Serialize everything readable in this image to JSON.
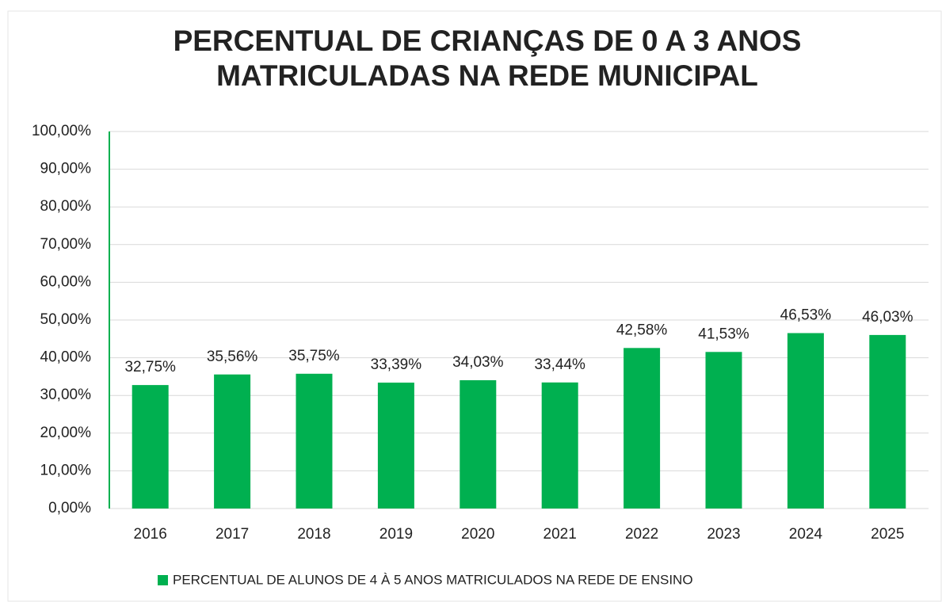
{
  "chart_data": {
    "type": "bar",
    "title": "PERCENTUAL DE CRIANÇAS DE 0 A 3 ANOS MATRICULADAS NA REDE MUNICIPAL",
    "categories": [
      "2016",
      "2017",
      "2018",
      "2019",
      "2020",
      "2021",
      "2022",
      "2023",
      "2024",
      "2025"
    ],
    "series": [
      {
        "name": "PERCENTUAL DE ALUNOS DE 4 À 5 ANOS MATRICULADOS NA REDE DE ENSINO",
        "color": "#00b050",
        "values": [
          32.75,
          35.56,
          35.75,
          33.39,
          34.03,
          33.44,
          42.58,
          41.53,
          46.53,
          46.03
        ],
        "value_labels": [
          "32,75%",
          "35,56%",
          "35,75%",
          "33,39%",
          "34,03%",
          "33,44%",
          "42,58%",
          "41,53%",
          "46,53%",
          "46,03%"
        ]
      }
    ],
    "ylim": [
      0,
      100
    ],
    "yticks": [
      {
        "value": 0,
        "label": "0,00%"
      },
      {
        "value": 10,
        "label": "10,00%"
      },
      {
        "value": 20,
        "label": "20,00%"
      },
      {
        "value": 30,
        "label": "30,00%"
      },
      {
        "value": 40,
        "label": "40,00%"
      },
      {
        "value": 50,
        "label": "50,00%"
      },
      {
        "value": 60,
        "label": "60,00%"
      },
      {
        "value": 70,
        "label": "70,00%"
      },
      {
        "value": 80,
        "label": "80,00%"
      },
      {
        "value": 90,
        "label": "90,00%"
      },
      {
        "value": 100,
        "label": "100,00%"
      }
    ],
    "grid": true,
    "legend": "bottom"
  }
}
